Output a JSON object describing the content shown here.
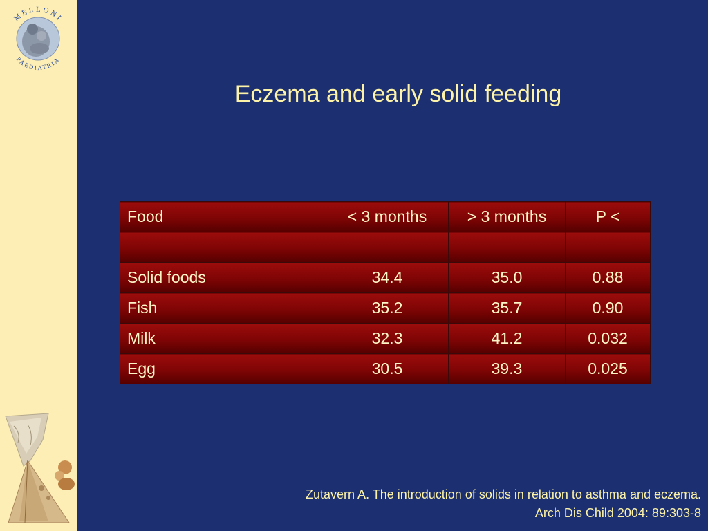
{
  "logo": {
    "top_text": "MELLONI",
    "bottom_text": "PAEDIATRIA"
  },
  "slide": {
    "title": "Eczema and early solid feeding"
  },
  "table": {
    "headers": [
      "Food",
      "< 3 months",
      "> 3 months",
      "P <"
    ],
    "rows": [
      [
        "",
        "",
        "",
        ""
      ],
      [
        "Solid foods",
        "34.4",
        "35.0",
        "0.88"
      ],
      [
        "Fish",
        "35.2",
        "35.7",
        "0.90"
      ],
      [
        "Milk",
        "32.3",
        "41.2",
        "0.032"
      ],
      [
        "Egg",
        "30.5",
        "39.3",
        "0.025"
      ]
    ]
  },
  "reference": {
    "line1": "Zutavern A. The introduction of solids in relation to asthma and eczema.",
    "line2": "Arch Dis Child 2004: 89:303-8"
  },
  "colors": {
    "background": "#1c2f71",
    "sidebar": "#fdeeb5",
    "text": "#fdf3a8",
    "table_cell": "#8a0606"
  }
}
